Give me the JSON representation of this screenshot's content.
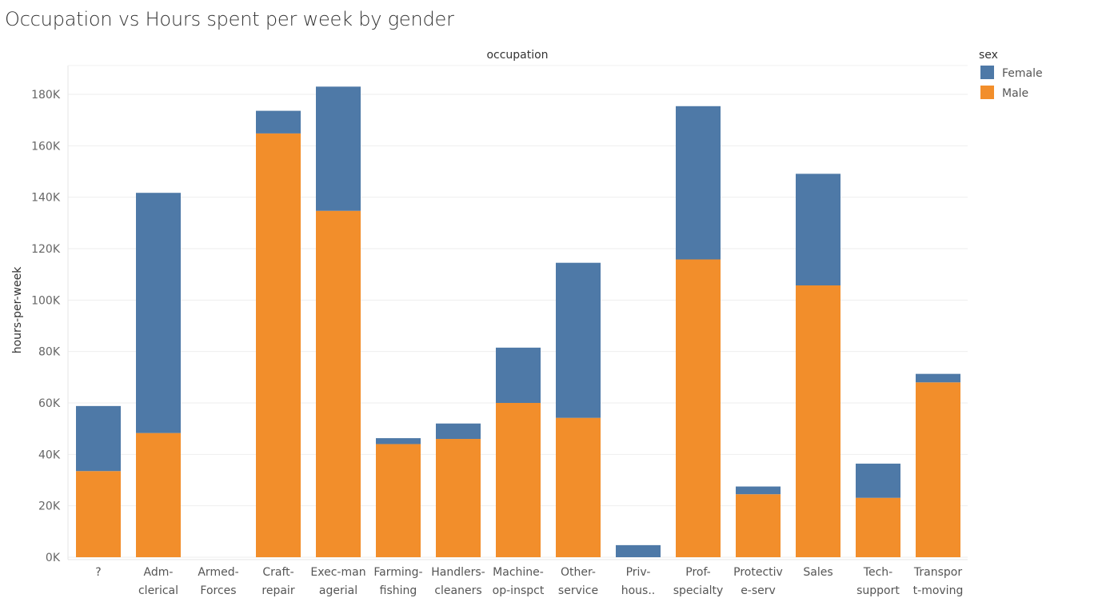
{
  "chart_data": {
    "type": "bar",
    "stacked": true,
    "title": "Occupation vs Hours spent per week by gender",
    "column_header": "occupation",
    "ylabel": "hours-per-week",
    "ylim": [
      0,
      190000
    ],
    "yticks": [
      0,
      20000,
      40000,
      60000,
      80000,
      100000,
      120000,
      140000,
      160000,
      180000
    ],
    "ytick_labels": [
      "0K",
      "20K",
      "40K",
      "60K",
      "80K",
      "100K",
      "120K",
      "140K",
      "160K",
      "180K"
    ],
    "categories": [
      [
        "?"
      ],
      [
        "Adm-",
        "clerical"
      ],
      [
        "Armed-",
        "Forces"
      ],
      [
        "Craft-",
        "repair"
      ],
      [
        "Exec-man",
        "agerial"
      ],
      [
        "Farming-",
        "fishing"
      ],
      [
        "Handlers-",
        "cleaners"
      ],
      [
        "Machine-",
        "op-inspct"
      ],
      [
        "Other-",
        "service"
      ],
      [
        "Priv-",
        "hous.."
      ],
      [
        "Prof-",
        "specialty"
      ],
      [
        "Protectiv",
        "e-serv"
      ],
      [
        "Sales"
      ],
      [
        "Tech-",
        "support"
      ],
      [
        "Transpor",
        "t-moving"
      ]
    ],
    "series": [
      {
        "name": "Male",
        "color": "#f28e2b",
        "values": [
          33500,
          48300,
          0,
          164800,
          134700,
          44000,
          46000,
          60000,
          54200,
          0,
          115800,
          24500,
          105700,
          23100,
          68000
        ]
      },
      {
        "name": "Female",
        "color": "#4e79a7",
        "values": [
          25300,
          93400,
          0,
          8800,
          48300,
          2300,
          6000,
          21500,
          60300,
          4700,
          59600,
          3000,
          43400,
          13300,
          3300
        ]
      }
    ],
    "grid": true,
    "legend": {
      "title": "sex",
      "position": "top-right",
      "entries": [
        "Female",
        "Male"
      ]
    }
  }
}
